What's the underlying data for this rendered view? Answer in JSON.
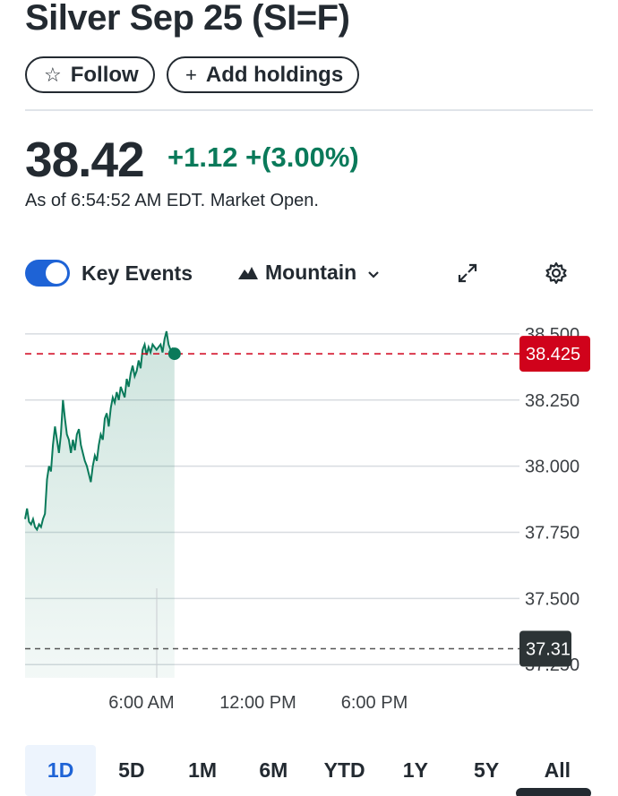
{
  "header": {
    "title": "Silver Sep 25 (SI=F)",
    "follow_label": "Follow",
    "follow_icon": "☆",
    "add_holdings_label": "Add holdings",
    "add_icon": "+"
  },
  "quote": {
    "price": "38.42",
    "change": "+1.12 +(3.00%)",
    "as_of": "As of 6:54:52 AM EDT. Market Open."
  },
  "controls": {
    "key_events_label": "Key Events",
    "key_events_on": true,
    "chart_type_label": "Mountain"
  },
  "chart_data": {
    "type": "area",
    "y_ticks": [
      "38.500",
      "38.250",
      "38.000",
      "37.750",
      "37.500",
      "37.250"
    ],
    "x_ticks": [
      "6:00 AM",
      "12:00 PM",
      "6:00 PM"
    ],
    "current_price_label": "38.425",
    "prev_close_label": "37.31",
    "current_price": 38.425,
    "prev_close": 37.31,
    "ylim": [
      37.2,
      38.52
    ],
    "line_color": "#0a7a5a",
    "current_price_color": "#d0021b",
    "series": [
      {
        "x": 0,
        "y": 37.8
      },
      {
        "x": 2,
        "y": 37.84
      },
      {
        "x": 4,
        "y": 37.79
      },
      {
        "x": 6,
        "y": 37.78
      },
      {
        "x": 8,
        "y": 37.8
      },
      {
        "x": 10,
        "y": 37.77
      },
      {
        "x": 12,
        "y": 37.76
      },
      {
        "x": 14,
        "y": 37.78
      },
      {
        "x": 16,
        "y": 37.77
      },
      {
        "x": 18,
        "y": 37.8
      },
      {
        "x": 20,
        "y": 37.82
      },
      {
        "x": 22,
        "y": 37.95
      },
      {
        "x": 24,
        "y": 38.0
      },
      {
        "x": 26,
        "y": 37.98
      },
      {
        "x": 28,
        "y": 38.08
      },
      {
        "x": 30,
        "y": 38.15
      },
      {
        "x": 32,
        "y": 38.1
      },
      {
        "x": 34,
        "y": 38.05
      },
      {
        "x": 36,
        "y": 38.12
      },
      {
        "x": 38,
        "y": 38.25
      },
      {
        "x": 40,
        "y": 38.18
      },
      {
        "x": 42,
        "y": 38.12
      },
      {
        "x": 44,
        "y": 38.1
      },
      {
        "x": 46,
        "y": 38.05
      },
      {
        "x": 48,
        "y": 38.1
      },
      {
        "x": 50,
        "y": 38.06
      },
      {
        "x": 52,
        "y": 38.12
      },
      {
        "x": 54,
        "y": 38.14
      },
      {
        "x": 56,
        "y": 38.08
      },
      {
        "x": 58,
        "y": 38.05
      },
      {
        "x": 60,
        "y": 38.02
      },
      {
        "x": 62,
        "y": 38.0
      },
      {
        "x": 64,
        "y": 37.97
      },
      {
        "x": 66,
        "y": 37.94
      },
      {
        "x": 68,
        "y": 38.0
      },
      {
        "x": 70,
        "y": 38.04
      },
      {
        "x": 72,
        "y": 38.02
      },
      {
        "x": 74,
        "y": 38.08
      },
      {
        "x": 76,
        "y": 38.12
      },
      {
        "x": 78,
        "y": 38.1
      },
      {
        "x": 80,
        "y": 38.18
      },
      {
        "x": 82,
        "y": 38.2
      },
      {
        "x": 84,
        "y": 38.15
      },
      {
        "x": 86,
        "y": 38.22
      },
      {
        "x": 88,
        "y": 38.26
      },
      {
        "x": 90,
        "y": 38.24
      },
      {
        "x": 92,
        "y": 38.28
      },
      {
        "x": 94,
        "y": 38.25
      },
      {
        "x": 96,
        "y": 38.3
      },
      {
        "x": 98,
        "y": 38.28
      },
      {
        "x": 100,
        "y": 38.26
      },
      {
        "x": 102,
        "y": 38.33
      },
      {
        "x": 104,
        "y": 38.3
      },
      {
        "x": 106,
        "y": 38.35
      },
      {
        "x": 108,
        "y": 38.38
      },
      {
        "x": 110,
        "y": 38.34
      },
      {
        "x": 112,
        "y": 38.36
      },
      {
        "x": 114,
        "y": 38.4
      },
      {
        "x": 116,
        "y": 38.37
      },
      {
        "x": 118,
        "y": 38.44
      },
      {
        "x": 120,
        "y": 38.46
      },
      {
        "x": 122,
        "y": 38.42
      },
      {
        "x": 124,
        "y": 38.45
      },
      {
        "x": 126,
        "y": 38.43
      },
      {
        "x": 128,
        "y": 38.46
      },
      {
        "x": 130,
        "y": 38.45
      },
      {
        "x": 132,
        "y": 38.44
      },
      {
        "x": 134,
        "y": 38.45
      },
      {
        "x": 136,
        "y": 38.46
      },
      {
        "x": 138,
        "y": 38.43
      },
      {
        "x": 140,
        "y": 38.48
      },
      {
        "x": 142,
        "y": 38.51
      },
      {
        "x": 144,
        "y": 38.46
      },
      {
        "x": 146,
        "y": 38.44
      },
      {
        "x": 148,
        "y": 38.445
      },
      {
        "x": 150,
        "y": 38.425
      }
    ],
    "x_total": 570
  },
  "range_tabs": [
    "1D",
    "5D",
    "1M",
    "6M",
    "YTD",
    "1Y",
    "5Y",
    "All"
  ],
  "active_range": "1D"
}
